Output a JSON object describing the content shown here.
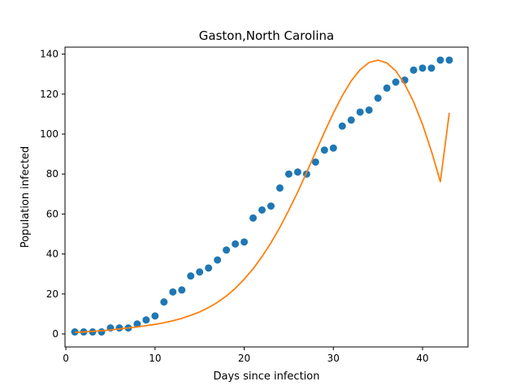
{
  "chart_data": {
    "type": "scatter",
    "title": "Gaston,North Carolina",
    "xlabel": "Days since infection",
    "ylabel": "Population infected",
    "xlim": [
      -0.1,
      45.1
    ],
    "ylim": [
      -6.5,
      143.5
    ],
    "xticks": [
      0,
      10,
      20,
      30,
      40
    ],
    "yticks": [
      0,
      20,
      40,
      60,
      80,
      100,
      120,
      140
    ],
    "grid": false,
    "series": [
      {
        "kind": "scatter",
        "color": "#1f77b4",
        "x": [
          1,
          2,
          3,
          4,
          5,
          6,
          7,
          8,
          9,
          10,
          11,
          12,
          13,
          14,
          15,
          16,
          17,
          18,
          19,
          20,
          21,
          22,
          23,
          24,
          25,
          26,
          27,
          28,
          29,
          30,
          31,
          32,
          33,
          34,
          35,
          36,
          37,
          38,
          39,
          40,
          41,
          42,
          43
        ],
        "y": [
          1,
          1,
          1,
          1,
          3,
          3,
          3,
          5,
          7,
          9,
          16,
          21,
          22,
          29,
          31,
          33,
          37,
          42,
          45,
          46,
          58,
          62,
          64,
          73,
          80,
          81,
          80,
          86,
          92,
          93,
          104,
          107,
          111,
          112,
          118,
          123,
          126,
          127,
          132,
          133,
          133,
          137,
          137
        ]
      },
      {
        "kind": "line",
        "color": "#ff7f0e",
        "x": [
          1,
          2,
          3,
          4,
          5,
          6,
          7,
          8,
          9,
          10,
          11,
          12,
          13,
          14,
          15,
          16,
          17,
          18,
          19,
          20,
          21,
          22,
          23,
          24,
          25,
          26,
          27,
          28,
          29,
          30,
          31,
          32,
          33,
          34,
          35,
          36,
          37,
          38,
          39,
          40,
          41,
          42,
          43
        ],
        "y": [
          0.8,
          1.0,
          1.3,
          1.6,
          2.0,
          2.5,
          3.0,
          3.5,
          4.1,
          4.8,
          5.6,
          6.6,
          7.8,
          9.3,
          11.0,
          13.2,
          15.8,
          19.0,
          22.8,
          27.4,
          32.6,
          38.7,
          45.6,
          53.3,
          61.9,
          71.0,
          80.8,
          90.9,
          100.9,
          110.5,
          119.2,
          126.6,
          132.2,
          135.8,
          137.0,
          135.6,
          131.6,
          125.0,
          116.1,
          104.8,
          91.4,
          76.2,
          110.6
        ]
      }
    ]
  }
}
